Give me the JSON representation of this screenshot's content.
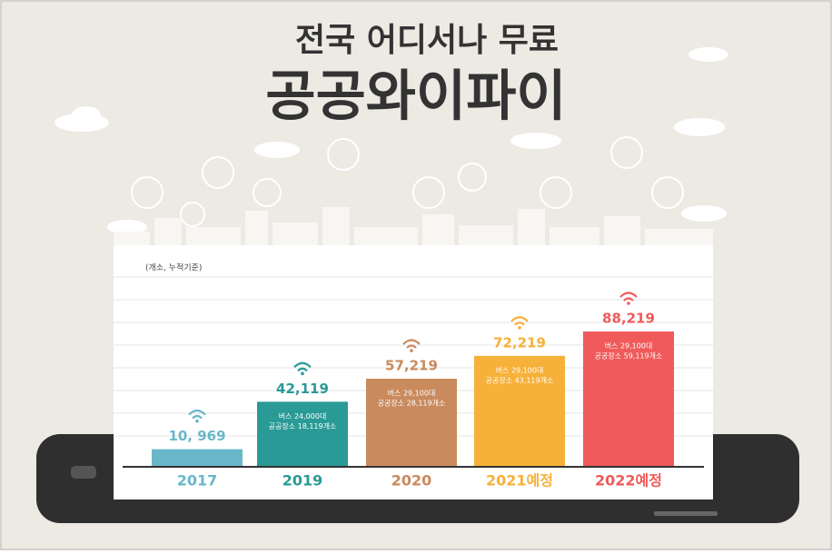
{
  "chart_data": {
    "type": "bar",
    "title": "전국 어디서나 무료",
    "subtitle": "공공와이파이",
    "unit_note": "(개소, 누적기준)",
    "categories": [
      "2017",
      "2019",
      "2020",
      "2021예정",
      "2022예정"
    ],
    "values": [
      10969,
      42119,
      57219,
      72219,
      88219
    ],
    "value_labels": [
      "10, 969",
      "42,119",
      "57,219",
      "72,219",
      "88,219"
    ],
    "colors": [
      "#6ab7c9",
      "#2a9a96",
      "#c98a5d",
      "#f6b13a",
      "#f05a5a"
    ],
    "notes": [
      [],
      [
        "버스 24,000대",
        "공공장소 18,119개소"
      ],
      [
        "버스 29,100대",
        "공공장소 28,119개소"
      ],
      [
        "버스 29,100대",
        "공공장소 43,119개소"
      ],
      [
        "버스 29,100대",
        "공공장소 59,119개소"
      ]
    ]
  }
}
